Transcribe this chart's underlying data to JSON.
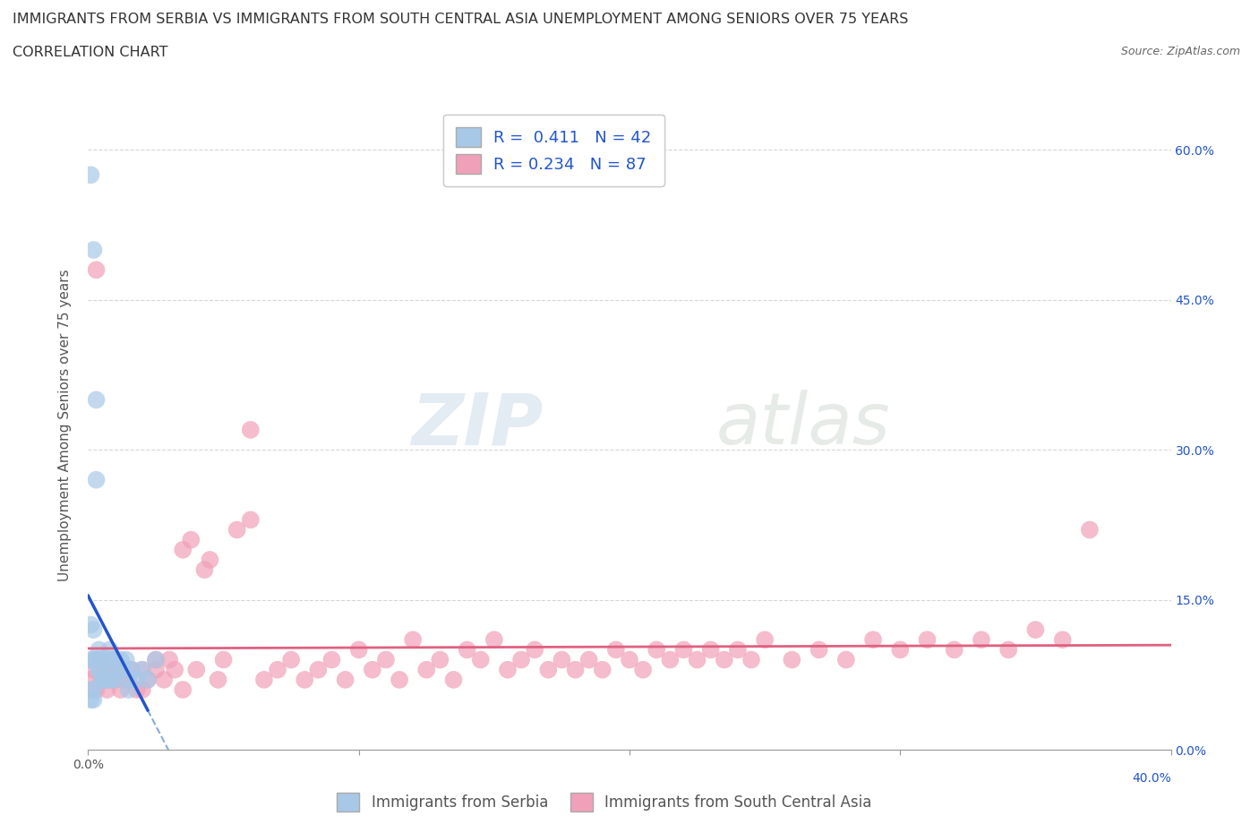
{
  "title_line1": "IMMIGRANTS FROM SERBIA VS IMMIGRANTS FROM SOUTH CENTRAL ASIA UNEMPLOYMENT AMONG SENIORS OVER 75 YEARS",
  "title_line2": "CORRELATION CHART",
  "source_text": "Source: ZipAtlas.com",
  "xlabel_serbia": "Immigrants from Serbia",
  "xlabel_sca": "Immigrants from South Central Asia",
  "ylabel": "Unemployment Among Seniors over 75 years",
  "serbia_color": "#A8C8E8",
  "serbia_line_color": "#2255CC",
  "serbia_line_dashed_color": "#88AADD",
  "sca_color": "#F0A0B8",
  "sca_line_color": "#E06080",
  "R_serbia": 0.411,
  "N_serbia": 42,
  "R_sca": 0.234,
  "N_sca": 87,
  "stats_color": "#2255CC",
  "watermark_zip": "ZIP",
  "watermark_atlas": "atlas",
  "xlim": [
    0.0,
    0.4
  ],
  "ylim": [
    0.0,
    0.65
  ],
  "x_ticks": [
    0.0,
    0.1,
    0.2,
    0.3,
    0.4
  ],
  "y_ticks": [
    0.0,
    0.15,
    0.3,
    0.45,
    0.6
  ],
  "y_tick_labels_right": [
    "0.0%",
    "15.0%",
    "30.0%",
    "45.0%",
    "60.0%"
  ],
  "serbia_x": [
    0.001,
    0.001,
    0.001,
    0.002,
    0.002,
    0.002,
    0.003,
    0.003,
    0.003,
    0.004,
    0.004,
    0.005,
    0.005,
    0.006,
    0.006,
    0.007,
    0.007,
    0.008,
    0.008,
    0.009,
    0.009,
    0.01,
    0.01,
    0.011,
    0.012,
    0.013,
    0.014,
    0.015,
    0.015,
    0.016,
    0.018,
    0.02,
    0.022,
    0.025,
    0.003,
    0.004,
    0.006,
    0.008,
    0.001,
    0.001,
    0.002,
    0.002
  ],
  "serbia_y": [
    0.575,
    0.125,
    0.09,
    0.5,
    0.12,
    0.09,
    0.35,
    0.27,
    0.09,
    0.1,
    0.08,
    0.09,
    0.07,
    0.09,
    0.07,
    0.09,
    0.07,
    0.1,
    0.08,
    0.09,
    0.07,
    0.09,
    0.07,
    0.08,
    0.09,
    0.08,
    0.09,
    0.07,
    0.06,
    0.08,
    0.07,
    0.08,
    0.07,
    0.09,
    0.09,
    0.08,
    0.07,
    0.09,
    0.06,
    0.05,
    0.06,
    0.05
  ],
  "sca_x": [
    0.001,
    0.002,
    0.003,
    0.004,
    0.005,
    0.006,
    0.007,
    0.008,
    0.009,
    0.01,
    0.012,
    0.014,
    0.016,
    0.018,
    0.02,
    0.022,
    0.025,
    0.028,
    0.03,
    0.032,
    0.035,
    0.038,
    0.04,
    0.043,
    0.045,
    0.048,
    0.05,
    0.055,
    0.06,
    0.065,
    0.07,
    0.075,
    0.08,
    0.085,
    0.09,
    0.095,
    0.1,
    0.105,
    0.11,
    0.115,
    0.12,
    0.125,
    0.13,
    0.135,
    0.14,
    0.145,
    0.15,
    0.155,
    0.16,
    0.165,
    0.17,
    0.175,
    0.18,
    0.185,
    0.19,
    0.195,
    0.2,
    0.205,
    0.21,
    0.215,
    0.22,
    0.225,
    0.23,
    0.235,
    0.24,
    0.245,
    0.25,
    0.26,
    0.27,
    0.28,
    0.29,
    0.3,
    0.31,
    0.32,
    0.33,
    0.34,
    0.35,
    0.36,
    0.37,
    0.003,
    0.006,
    0.01,
    0.015,
    0.02,
    0.025,
    0.035,
    0.06
  ],
  "sca_y": [
    0.07,
    0.08,
    0.06,
    0.09,
    0.07,
    0.08,
    0.06,
    0.07,
    0.08,
    0.07,
    0.06,
    0.07,
    0.08,
    0.06,
    0.08,
    0.07,
    0.09,
    0.07,
    0.09,
    0.08,
    0.2,
    0.21,
    0.08,
    0.18,
    0.19,
    0.07,
    0.09,
    0.22,
    0.23,
    0.07,
    0.08,
    0.09,
    0.07,
    0.08,
    0.09,
    0.07,
    0.1,
    0.08,
    0.09,
    0.07,
    0.11,
    0.08,
    0.09,
    0.07,
    0.1,
    0.09,
    0.11,
    0.08,
    0.09,
    0.1,
    0.08,
    0.09,
    0.08,
    0.09,
    0.08,
    0.1,
    0.09,
    0.08,
    0.1,
    0.09,
    0.1,
    0.09,
    0.1,
    0.09,
    0.1,
    0.09,
    0.11,
    0.09,
    0.1,
    0.09,
    0.11,
    0.1,
    0.11,
    0.1,
    0.11,
    0.1,
    0.12,
    0.11,
    0.22,
    0.48,
    0.07,
    0.08,
    0.07,
    0.06,
    0.08,
    0.06,
    0.32
  ],
  "background_color": "#FFFFFF",
  "grid_color": "#CCCCCC",
  "title_fontsize": 11.5,
  "axis_label_fontsize": 11,
  "tick_fontsize": 10,
  "legend_fontsize": 12,
  "stats_fontsize": 13
}
